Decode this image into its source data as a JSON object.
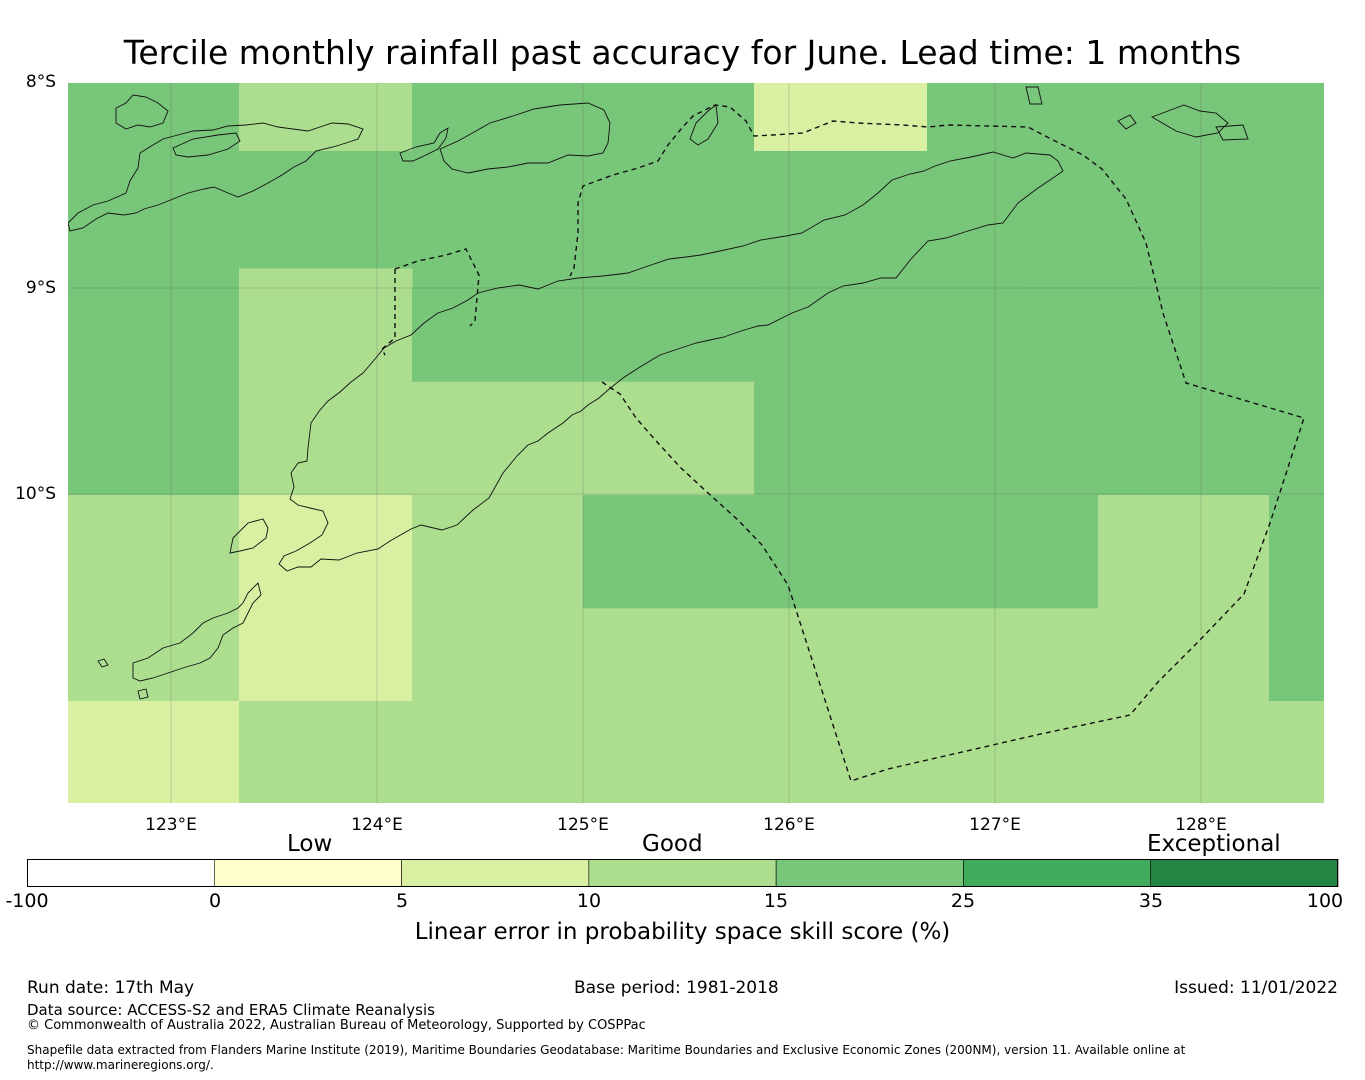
{
  "title": "Tercile monthly rainfall past accuracy for June. Lead time: 1 months",
  "map": {
    "lat_labels": [
      "8°S",
      "9°S",
      "10°S"
    ],
    "lon_labels": [
      "123°E",
      "124°E",
      "125°E",
      "126°E",
      "127°E",
      "128°E"
    ],
    "skill_grid": {
      "description_units": "skill score %",
      "cells": [
        {
          "lon": [
            122.5,
            123.33
          ],
          "lat": [
            -8.0,
            -9.0
          ],
          "value": 20
        },
        {
          "lon": [
            123.33,
            124.17
          ],
          "lat": [
            -8.0,
            -8.33
          ],
          "value": 12
        },
        {
          "lon": [
            124.17,
            125.83
          ],
          "lat": [
            -8.0,
            -9.0
          ],
          "value": 20
        },
        {
          "lon": [
            125.83,
            126.67
          ],
          "lat": [
            -8.0,
            -8.33
          ],
          "value": 7
        },
        {
          "lon": [
            126.67,
            128.6
          ],
          "lat": [
            -8.0,
            -9.0
          ],
          "value": 20
        },
        {
          "lon": [
            123.33,
            124.17
          ],
          "lat": [
            -8.33,
            -8.9
          ],
          "value": 20
        },
        {
          "lon": [
            125.83,
            126.67
          ],
          "lat": [
            -8.33,
            -9.0
          ],
          "value": 20
        },
        {
          "lon": [
            122.5,
            123.33
          ],
          "lat": [
            -9.0,
            -10.0
          ],
          "value": 20
        },
        {
          "lon": [
            123.33,
            124.17
          ],
          "lat": [
            -8.9,
            -10.0
          ],
          "value": 12
        },
        {
          "lon": [
            124.17,
            125.83
          ],
          "lat": [
            -9.0,
            -9.45
          ],
          "value": 20
        },
        {
          "lon": [
            124.17,
            125.83
          ],
          "lat": [
            -9.45,
            -10.0
          ],
          "value": 12
        },
        {
          "lon": [
            125.83,
            128.6
          ],
          "lat": [
            -9.0,
            -10.0
          ],
          "value": 20
        },
        {
          "lon": [
            122.5,
            123.33
          ],
          "lat": [
            -10.0,
            -11.0
          ],
          "value": 12
        },
        {
          "lon": [
            123.33,
            124.17
          ],
          "lat": [
            -10.0,
            -11.0
          ],
          "value": 7
        },
        {
          "lon": [
            124.17,
            125.0
          ],
          "lat": [
            -10.0,
            -11.5
          ],
          "value": 12
        },
        {
          "lon": [
            125.0,
            127.5
          ],
          "lat": [
            -10.0,
            -10.55
          ],
          "value": 20
        },
        {
          "lon": [
            127.5,
            128.33
          ],
          "lat": [
            -10.0,
            -11.0
          ],
          "value": 12
        },
        {
          "lon": [
            128.33,
            128.6
          ],
          "lat": [
            -10.0,
            -11.0
          ],
          "value": 20
        },
        {
          "lon": [
            125.0,
            127.5
          ],
          "lat": [
            -10.55,
            -11.5
          ],
          "value": 12
        },
        {
          "lon": [
            127.5,
            128.6
          ],
          "lat": [
            -11.0,
            -11.5
          ],
          "value": 12
        },
        {
          "lon": [
            122.5,
            123.33
          ],
          "lat": [
            -11.0,
            -11.5
          ],
          "value": 7
        },
        {
          "lon": [
            123.33,
            124.17
          ],
          "lat": [
            -11.0,
            -11.5
          ],
          "value": 12
        }
      ]
    }
  },
  "colorbar": {
    "categories": [
      "Low",
      "Good",
      "Exceptional"
    ],
    "ticks": [
      "-100",
      "0",
      "5",
      "10",
      "15",
      "25",
      "35",
      "100"
    ],
    "colors": [
      "#ffffff",
      "#ffffcc",
      "#d9f0a3",
      "#addd8e",
      "#78c679",
      "#41ab5d",
      "#238443"
    ],
    "label": "Linear error in probability space skill score (%)"
  },
  "footer": {
    "run_date": "Run date: 17th May",
    "base_period": "Base period: 1981-2018",
    "issued": "Issued: 11/01/2022",
    "data_source": "Data source: ACCESS-S2 and ERA5 Climate Reanalysis",
    "copyright": "© Commonwealth of Australia 2022, Australian Bureau of Meteorology, Supported by COSPPac",
    "shapefile_line1": "Shapefile data extracted from Flanders Marine Institute (2019), Maritime Boundaries Geodatabase: Maritime Boundaries and Exclusive Economic Zones (200NM), version 11. Available online at",
    "shapefile_line2": "http://www.marineregions.org/."
  }
}
